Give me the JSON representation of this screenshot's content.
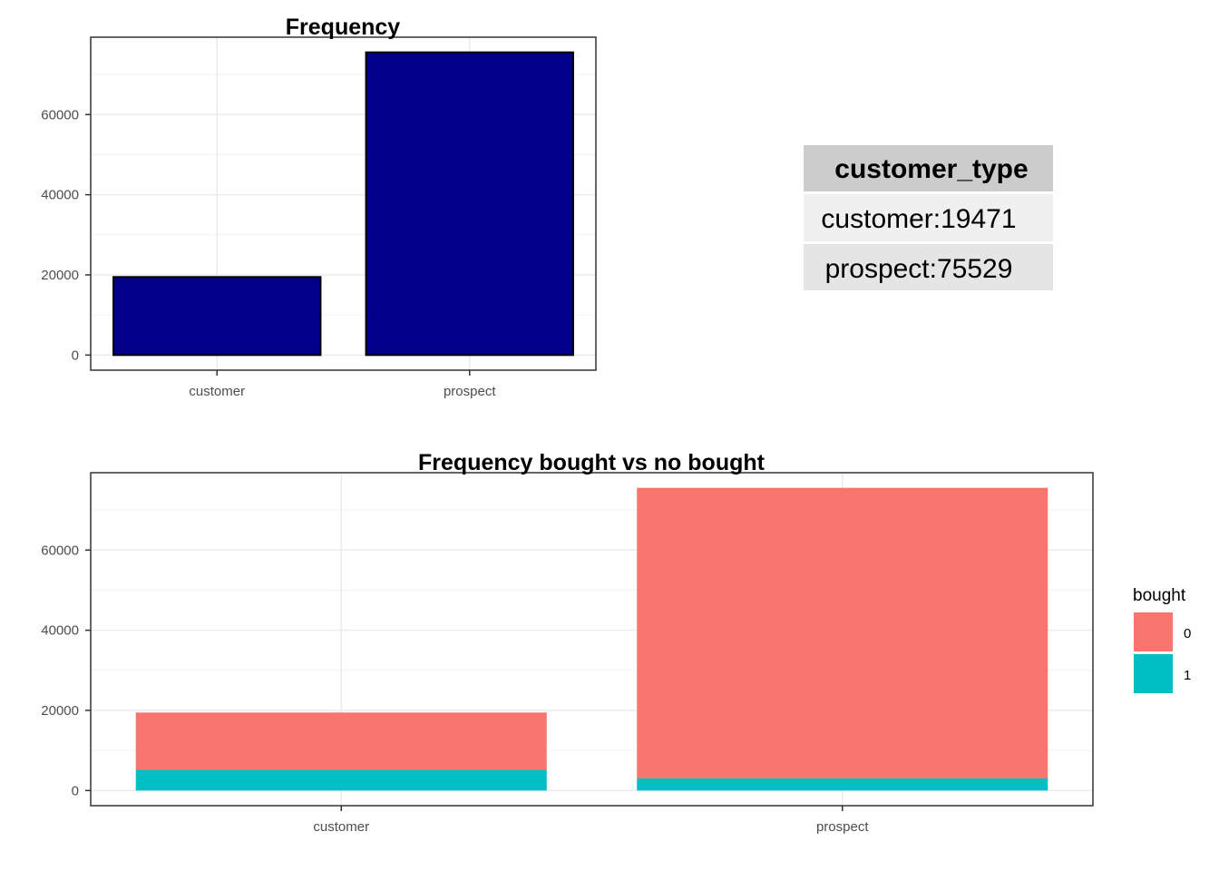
{
  "chart_data": [
    {
      "type": "bar",
      "title": "Frequency",
      "xlabel": "",
      "ylabel": "",
      "categories": [
        "customer",
        "prospect"
      ],
      "values": [
        19471,
        75529
      ],
      "ylim": [
        -3776,
        79305
      ],
      "yticks": [
        0,
        20000,
        40000,
        60000
      ],
      "grid": true,
      "colors": {
        "fill": "#00008B",
        "stroke": "#000000"
      }
    },
    {
      "type": "bar",
      "stacked": true,
      "title": "Frequency bought vs no bought",
      "xlabel": "",
      "ylabel": "",
      "categories": [
        "customer",
        "prospect"
      ],
      "series": [
        {
          "name": "0",
          "values": [
            14300,
            72500
          ],
          "color": "#F8766D"
        },
        {
          "name": "1",
          "values": [
            5171,
            3029
          ],
          "color": "#00BFC4"
        }
      ],
      "ylim": [
        -3776,
        79305
      ],
      "yticks": [
        0,
        20000,
        40000,
        60000
      ],
      "grid": true,
      "legend": {
        "title": "bought",
        "position": "right"
      }
    }
  ],
  "table": {
    "header": "customer_type",
    "rows": [
      "customer:19471",
      "prospect:75529"
    ],
    "colors": {
      "header_bg": "#CCCCCC",
      "row_bg": [
        "#F0F0F0",
        "#E5E5E5"
      ]
    }
  }
}
